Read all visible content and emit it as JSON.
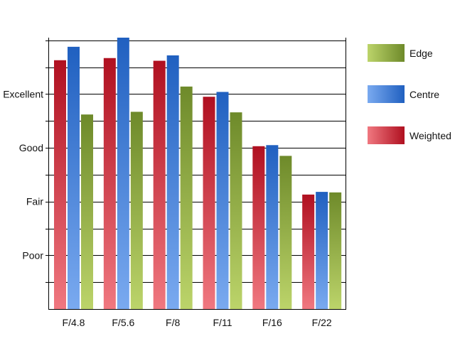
{
  "chart_data": {
    "type": "bar",
    "categories": [
      "F/4.8",
      "F/5.6",
      "F/8",
      "F/11",
      "F/16",
      "F/22"
    ],
    "series": [
      {
        "name": "Weighted",
        "values": [
          3.63,
          3.67,
          3.62,
          2.95,
          2.03,
          1.13
        ]
      },
      {
        "name": "Centre",
        "values": [
          3.88,
          4.05,
          3.72,
          3.04,
          2.05,
          1.18
        ]
      },
      {
        "name": "Edge",
        "values": [
          2.62,
          2.67,
          3.14,
          2.66,
          1.85,
          1.17
        ]
      }
    ],
    "ylim": [
      -1,
      4.05
    ],
    "ytick_labels": [
      {
        "value": 0,
        "label": "Poor"
      },
      {
        "value": 1,
        "label": "Fair"
      },
      {
        "value": 2,
        "label": "Good"
      },
      {
        "value": 3,
        "label": "Excellent"
      }
    ],
    "minor_gridline_step": 0.5,
    "grid": true,
    "legend_position": "right",
    "legend_order": [
      "Edge",
      "Centre",
      "Weighted"
    ],
    "colors": {
      "Weighted": {
        "light": "#f07880",
        "dark": "#b01020"
      },
      "Centre": {
        "light": "#7aaaf0",
        "dark": "#2060c0"
      },
      "Edge": {
        "light": "#bcd46a",
        "dark": "#6e8a2a"
      }
    },
    "xlabel": "",
    "ylabel": "",
    "title": ""
  }
}
